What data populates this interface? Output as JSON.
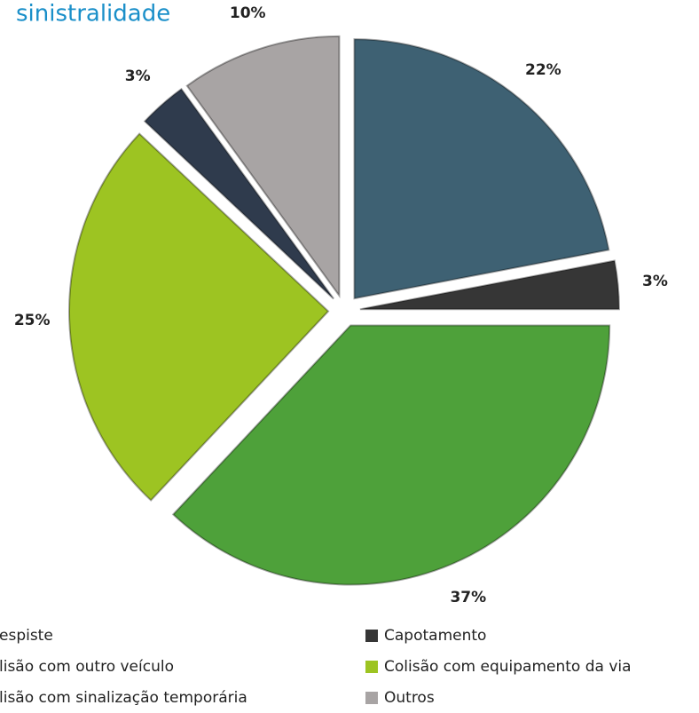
{
  "chart_data": {
    "type": "pie",
    "title": "sinistralidade",
    "categories": [
      "espiste",
      "Capotamento",
      "lisão com outro veículo",
      "Colisão com equipamento da via",
      "lisão com sinalização temporária",
      "Outros"
    ],
    "values": [
      22,
      3,
      37,
      25,
      3,
      10
    ],
    "value_labels": [
      "22%",
      "3%",
      "37%",
      "25%",
      "3%",
      "10%"
    ],
    "colors": [
      "#3e6173",
      "#363636",
      "#4ea13a",
      "#9dc422",
      "#2f3b4d",
      "#a8a4a4"
    ]
  }
}
